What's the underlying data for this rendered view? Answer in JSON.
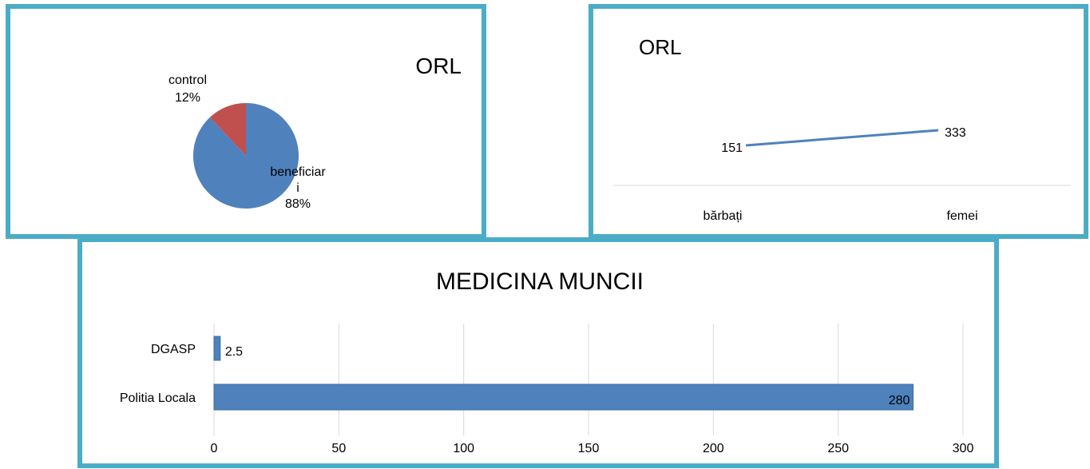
{
  "chart_data": [
    {
      "type": "pie",
      "title": "ORL",
      "categories": [
        "control",
        "beneficiari"
      ],
      "values": [
        12,
        88
      ],
      "value_labels": [
        "12%",
        "88%"
      ],
      "colors": [
        "#c0504d",
        "#4f81bd"
      ]
    },
    {
      "type": "line",
      "title": "ORL",
      "categories": [
        "bărbați",
        "femei"
      ],
      "values": [
        151,
        333
      ],
      "color": "#4f81bd"
    },
    {
      "type": "hbar",
      "title": "MEDICINA MUNCII",
      "categories": [
        "DGASP",
        "Politia Locala"
      ],
      "values": [
        2.5,
        280
      ],
      "color": "#4f81bd",
      "xlim": [
        0,
        300
      ],
      "xticks": [
        0,
        50,
        100,
        150,
        200,
        250,
        300
      ],
      "grid": true
    }
  ]
}
